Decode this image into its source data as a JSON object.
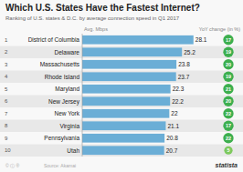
{
  "chart_data": {
    "type": "bar",
    "orientation": "horizontal",
    "title": "Which U.S. States Have the Fastest Internet?",
    "subtitle": "Ranking of U.S. states & D.C. by average connection speed in Q1 2017",
    "value_header": "Avg. Mbps",
    "change_header": "YoY change (in %)",
    "categories": [
      "District of Columbia",
      "Delaware",
      "Massachusetts",
      "Rhode Island",
      "Maryland",
      "New Jersey",
      "New York",
      "Virginia",
      "Pennsylvania",
      "Utah"
    ],
    "values": [
      28.1,
      25.2,
      23.8,
      23.7,
      22.3,
      22.2,
      22.0,
      21.1,
      20.8,
      20.7
    ],
    "ranks": [
      1,
      2,
      3,
      4,
      5,
      6,
      7,
      8,
      9,
      10
    ],
    "pct_change": [
      17,
      19,
      20,
      19,
      21,
      20,
      22,
      17,
      22,
      5
    ],
    "change_colors": [
      "#3daf4e",
      "#3daf4e",
      "#3daf4e",
      "#3daf4e",
      "#3daf4e",
      "#3daf4e",
      "#3daf4e",
      "#3daf4e",
      "#3daf4e",
      "#7dc95e"
    ],
    "color": "#6baed6",
    "xlim": [
      0,
      30
    ],
    "data_labels": true,
    "tick_labels": false,
    "grid": false,
    "credits": [
      "© ⓘ ®",
      "Source: Akamai",
      "statista"
    ]
  }
}
